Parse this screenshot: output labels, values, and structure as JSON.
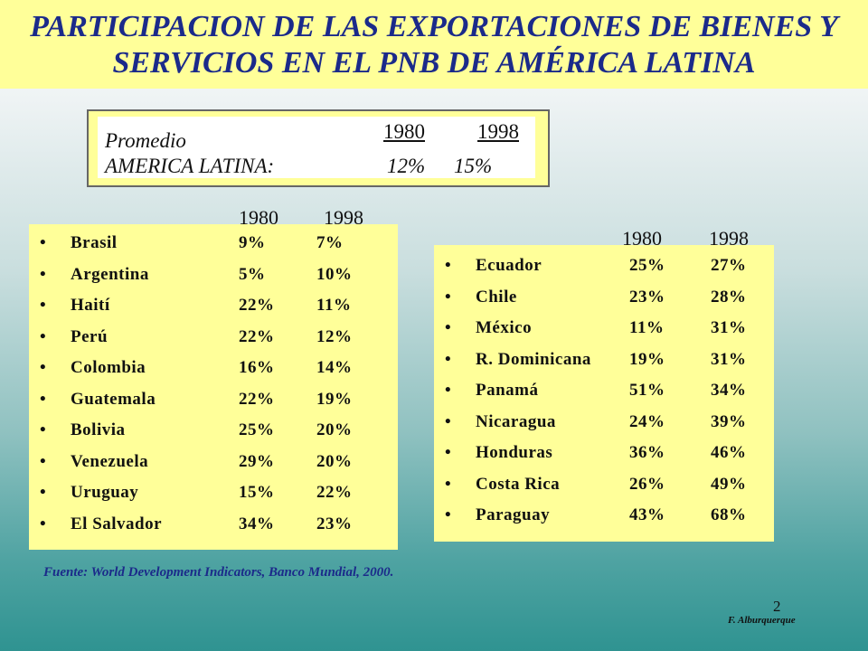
{
  "title_line1": "PARTICIPACION DE LAS EXPORTACIONES DE BIENES Y",
  "title_line2": "SERVICIOS EN EL PNB DE AMÉRICA LATINA",
  "average": {
    "label1": "Promedio",
    "label2": "AMERICA LATINA:",
    "year1": "1980",
    "year2": "1998",
    "value1": "12%",
    "value2": "15%"
  },
  "left_table": {
    "year1": "1980",
    "year2": "1998",
    "bullet": "•",
    "rows": [
      {
        "name": "Brasil",
        "v1": "9%",
        "v2": "7%"
      },
      {
        "name": "Argentina",
        "v1": "5%",
        "v2": "10%"
      },
      {
        "name": "Haití",
        "v1": "22%",
        "v2": "11%"
      },
      {
        "name": "Perú",
        "v1": "22%",
        "v2": "12%"
      },
      {
        "name": "Colombia",
        "v1": "16%",
        "v2": "14%"
      },
      {
        "name": "Guatemala",
        "v1": "22%",
        "v2": "19%"
      },
      {
        "name": "Bolivia",
        "v1": "25%",
        "v2": "20%"
      },
      {
        "name": "Venezuela",
        "v1": "29%",
        "v2": "20%"
      },
      {
        "name": "Uruguay",
        "v1": "15%",
        "v2": "22%"
      },
      {
        "name": "El Salvador",
        "v1": "34%",
        "v2": "23%"
      }
    ]
  },
  "right_table": {
    "year1": "1980",
    "year2": "1998",
    "bullet": "•",
    "rows": [
      {
        "name": "Ecuador",
        "v1": "25%",
        "v2": "27%"
      },
      {
        "name": "Chile",
        "v1": "23%",
        "v2": "28%"
      },
      {
        "name": "México",
        "v1": "11%",
        "v2": "31%"
      },
      {
        "name": "R. Dominicana",
        "v1": "19%",
        "v2": "31%"
      },
      {
        "name": "Panamá",
        "v1": "51%",
        "v2": "34%"
      },
      {
        "name": "Nicaragua",
        "v1": "24%",
        "v2": "39%"
      },
      {
        "name": "Honduras",
        "v1": "36%",
        "v2": "46%"
      },
      {
        "name": "Costa Rica",
        "v1": "26%",
        "v2": "49%"
      },
      {
        "name": "Paraguay",
        "v1": "43%",
        "v2": "68%"
      }
    ]
  },
  "source": "Fuente: World Development Indicators, Banco Mundial, 2000.",
  "page_number": "2",
  "author": "F. Alburquerque"
}
